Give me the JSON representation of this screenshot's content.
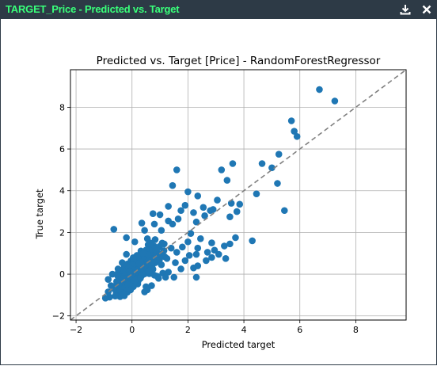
{
  "window": {
    "title": "TARGET_Price - Predicted vs. Target",
    "download_icon": "download-icon",
    "close_icon": "close-icon"
  },
  "chart_data": {
    "type": "scatter",
    "title": "Predicted vs. Target [Price] - RandomForestRegressor",
    "xlabel": "Predicted target",
    "ylabel": "True target",
    "xlim": [
      -2.2,
      9.8
    ],
    "ylim": [
      -2.2,
      9.8
    ],
    "x_ticks": [
      -2,
      0,
      2,
      4,
      6,
      8
    ],
    "y_ticks": [
      -2,
      0,
      2,
      4,
      6,
      8
    ],
    "grid": true,
    "point_color": "#1f77b4",
    "reference_line": {
      "from": [
        -2.2,
        -2.2
      ],
      "to": [
        9.8,
        9.8
      ],
      "style": "dashed",
      "color": "#808080"
    },
    "points": [
      [
        6.7,
        8.85
      ],
      [
        7.25,
        8.3
      ],
      [
        5.7,
        7.35
      ],
      [
        5.8,
        6.85
      ],
      [
        5.9,
        6.6
      ],
      [
        5.25,
        5.75
      ],
      [
        4.65,
        5.3
      ],
      [
        5.0,
        5.1
      ],
      [
        5.2,
        4.35
      ],
      [
        4.45,
        3.85
      ],
      [
        5.45,
        3.05
      ],
      [
        4.3,
        1.6
      ],
      [
        3.6,
        5.3
      ],
      [
        3.2,
        5.0
      ],
      [
        3.4,
        4.5
      ],
      [
        1.6,
        5.0
      ],
      [
        1.45,
        4.25
      ],
      [
        2.0,
        3.95
      ],
      [
        2.35,
        3.75
      ],
      [
        3.05,
        3.55
      ],
      [
        3.55,
        3.4
      ],
      [
        2.9,
        3.1
      ],
      [
        3.85,
        3.35
      ],
      [
        3.5,
        2.75
      ],
      [
        3.75,
        3.0
      ],
      [
        2.6,
        2.8
      ],
      [
        2.8,
        3.05
      ],
      [
        2.3,
        2.5
      ],
      [
        1.9,
        3.3
      ],
      [
        1.75,
        3.05
      ],
      [
        1.3,
        3.25
      ],
      [
        1.0,
        2.85
      ],
      [
        1.3,
        2.55
      ],
      [
        0.75,
        2.9
      ],
      [
        0.35,
        2.45
      ],
      [
        0.8,
        2.4
      ],
      [
        1.45,
        2.4
      ],
      [
        1.65,
        2.65
      ],
      [
        2.2,
        2.95
      ],
      [
        2.55,
        3.2
      ],
      [
        1.05,
        2.1
      ],
      [
        0.45,
        2.1
      ],
      [
        -0.65,
        2.15
      ],
      [
        -0.2,
        1.75
      ],
      [
        0.1,
        1.55
      ],
      [
        0.55,
        1.7
      ],
      [
        2.1,
        1.95
      ],
      [
        2.45,
        1.7
      ],
      [
        2.85,
        1.5
      ],
      [
        3.3,
        1.35
      ],
      [
        2.95,
        1.15
      ],
      [
        3.7,
        1.75
      ],
      [
        3.5,
        1.45
      ],
      [
        2.85,
        0.8
      ],
      [
        2.65,
        0.65
      ],
      [
        2.3,
        0.95
      ],
      [
        2.7,
        1.05
      ],
      [
        3.1,
        0.95
      ],
      [
        3.35,
        0.75
      ],
      [
        1.9,
        0.65
      ],
      [
        1.55,
        0.55
      ],
      [
        2.2,
        0.3
      ],
      [
        2.35,
        0.4
      ],
      [
        1.75,
        0.25
      ],
      [
        1.3,
        0.1
      ],
      [
        2.3,
        -0.15
      ],
      [
        1.5,
        -0.15
      ],
      [
        1.1,
        0.05
      ],
      [
        0.95,
        -0.2
      ],
      [
        1.2,
        -0.15
      ],
      [
        0.9,
        -0.1
      ],
      [
        0.5,
        -0.6
      ],
      [
        0.7,
        -0.55
      ],
      [
        0.55,
        -0.75
      ],
      [
        0.45,
        -0.85
      ],
      [
        0.05,
        -0.6
      ],
      [
        -0.3,
        -0.95
      ],
      [
        -0.6,
        -1.05
      ],
      [
        -0.8,
        -1.1
      ],
      [
        -0.95,
        -1.15
      ],
      [
        -0.85,
        -0.85
      ],
      [
        -0.65,
        -0.7
      ],
      [
        -0.45,
        -0.45
      ],
      [
        -0.3,
        -0.2
      ],
      [
        -0.55,
        -0.35
      ],
      [
        -0.75,
        -0.55
      ],
      [
        -0.1,
        0.15
      ],
      [
        0.2,
        0.2
      ],
      [
        0.35,
        -0.05
      ],
      [
        0.1,
        -0.3
      ],
      [
        -0.15,
        -0.5
      ],
      [
        0.25,
        0.5
      ],
      [
        0.05,
        0.75
      ],
      [
        -0.35,
        0.55
      ],
      [
        -0.2,
        0.95
      ],
      [
        0.4,
        1.0
      ],
      [
        0.7,
        0.55
      ],
      [
        0.85,
        0.85
      ],
      [
        1.05,
        0.45
      ],
      [
        1.25,
        0.75
      ],
      [
        -0.5,
        0.25
      ],
      [
        -0.7,
        0.0
      ],
      [
        -0.85,
        -0.25
      ],
      [
        0.6,
        0.15
      ],
      [
        0.8,
        -0.05
      ],
      [
        1.6,
        1.05
      ],
      [
        1.8,
        1.3
      ],
      [
        1.4,
        1.25
      ],
      [
        2.0,
        1.55
      ],
      [
        1.15,
        1.45
      ],
      [
        0.9,
        1.25
      ],
      [
        2.35,
        1.25
      ],
      [
        2.05,
        0.9
      ],
      [
        0.3,
        -0.2
      ],
      [
        -0.05,
        -0.75
      ]
    ]
  }
}
